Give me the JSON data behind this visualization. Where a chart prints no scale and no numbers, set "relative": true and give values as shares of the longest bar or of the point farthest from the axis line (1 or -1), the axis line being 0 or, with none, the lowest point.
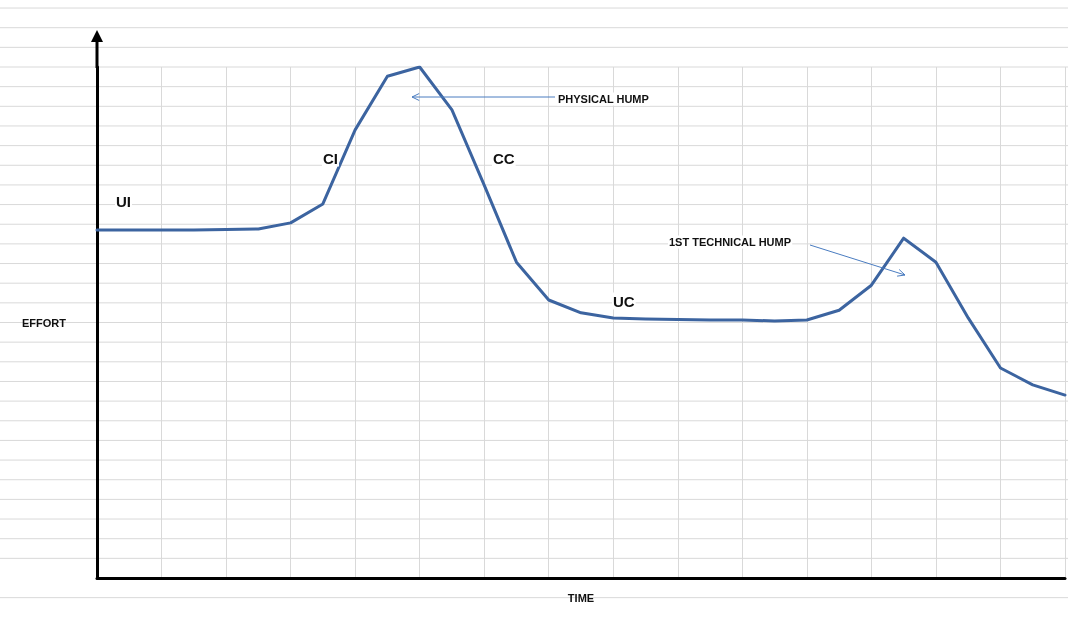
{
  "chart_data": {
    "type": "line",
    "relative": true,
    "xlabel": "TIME",
    "ylabel": "EFFORT",
    "categories": [
      null,
      null,
      null,
      null,
      null,
      null,
      null,
      null,
      null,
      null,
      null,
      null,
      null,
      null,
      null,
      null,
      null,
      null,
      null,
      null,
      null,
      null,
      null,
      null,
      null,
      null,
      null,
      null,
      null,
      null,
      null
    ],
    "series": [
      {
        "color": "#3c64a0",
        "values": [
          0.681,
          0.681,
          0.681,
          0.681,
          0.682,
          0.683,
          0.695,
          0.732,
          0.877,
          0.982,
          1,
          0.916,
          0.769,
          0.618,
          0.544,
          0.519,
          0.509,
          0.507,
          0.506,
          0.505,
          0.505,
          0.503,
          0.505,
          0.524,
          0.573,
          0.665,
          0.618,
          0.509,
          0.411,
          0.378,
          0.358
        ]
      }
    ],
    "annotations": [
      "UI",
      "CI",
      "CC",
      "UC",
      "PHYSICAL HUMP",
      "1ST TECHNICAL HUMP"
    ],
    "grid": true,
    "marker": "none",
    "line_style": "solid"
  }
}
